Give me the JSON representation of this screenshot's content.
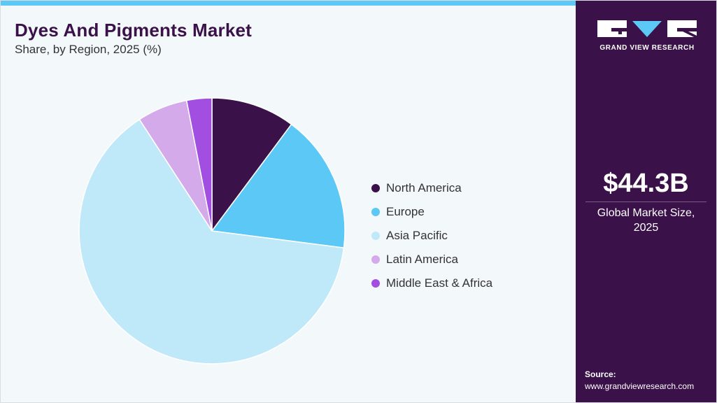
{
  "header": {
    "title": "Dyes And Pigments Market",
    "subtitle": "Share, by Region, 2025 (%)"
  },
  "chart_data": {
    "type": "pie",
    "categories": [
      "North America",
      "Europe",
      "Asia Pacific",
      "Latin America",
      "Middle East & Africa"
    ],
    "values": [
      10,
      16.5,
      62.5,
      6,
      3
    ],
    "colors": [
      "#3a1148",
      "#5bc8f5",
      "#bfe9f9",
      "#d4aaeb",
      "#a24ee0"
    ],
    "legend_position": "right"
  },
  "sidebar": {
    "brand": "GRAND VIEW RESEARCH",
    "market_size_value": "$44.3B",
    "market_size_label_line1": "Global Market Size,",
    "market_size_label_line2": "2025",
    "source_title": "Source:",
    "source_url": "www.grandviewresearch.com"
  }
}
